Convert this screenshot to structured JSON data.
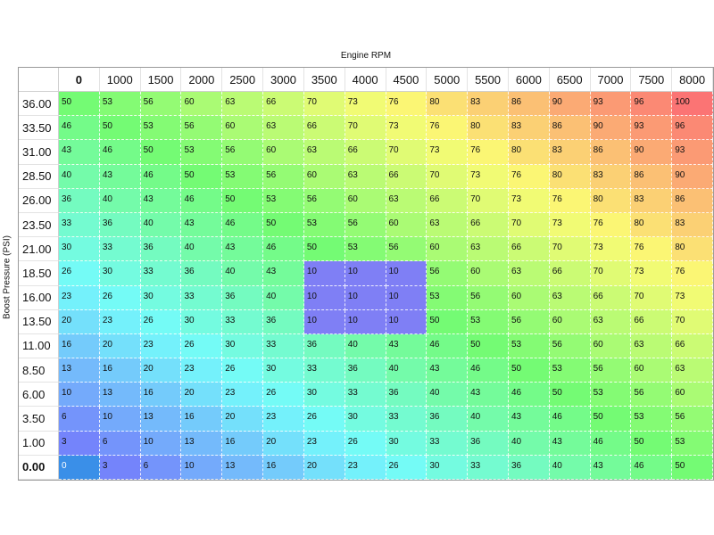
{
  "x_axis_label": "Engine RPM",
  "y_axis_label": "Boost Pressure (PSI)",
  "rpm": [
    "0",
    "1000",
    "1500",
    "2000",
    "2500",
    "3000",
    "3500",
    "4000",
    "4500",
    "5000",
    "5500",
    "6000",
    "6500",
    "7000",
    "7500",
    "8000"
  ],
  "boost": [
    "36.00",
    "33.50",
    "31.00",
    "28.50",
    "26.00",
    "23.50",
    "21.00",
    "18.50",
    "16.00",
    "13.50",
    "11.00",
    "8.50",
    "6.00",
    "3.50",
    "1.00",
    "0.00"
  ],
  "selected_cell": {
    "row": 15,
    "col": 0
  },
  "highlight_color": "#7f7ff5",
  "selected_color": "#3a8fe8",
  "values": [
    [
      50,
      53,
      56,
      60,
      63,
      66,
      70,
      73,
      76,
      80,
      83,
      86,
      90,
      93,
      96,
      100
    ],
    [
      46,
      50,
      53,
      56,
      60,
      63,
      66,
      70,
      73,
      76,
      80,
      83,
      86,
      90,
      93,
      96
    ],
    [
      43,
      46,
      50,
      53,
      56,
      60,
      63,
      66,
      70,
      73,
      76,
      80,
      83,
      86,
      90,
      93
    ],
    [
      40,
      43,
      46,
      50,
      53,
      56,
      60,
      63,
      66,
      70,
      73,
      76,
      80,
      83,
      86,
      90
    ],
    [
      36,
      40,
      43,
      46,
      50,
      53,
      56,
      60,
      63,
      66,
      70,
      73,
      76,
      80,
      83,
      86
    ],
    [
      33,
      36,
      40,
      43,
      46,
      50,
      53,
      56,
      60,
      63,
      66,
      70,
      73,
      76,
      80,
      83
    ],
    [
      30,
      33,
      36,
      40,
      43,
      46,
      50,
      53,
      56,
      60,
      63,
      66,
      70,
      73,
      76,
      80
    ],
    [
      26,
      30,
      33,
      36,
      40,
      43,
      10,
      10,
      10,
      56,
      60,
      63,
      66,
      70,
      73,
      76
    ],
    [
      23,
      26,
      30,
      33,
      36,
      40,
      10,
      10,
      10,
      53,
      56,
      60,
      63,
      66,
      70,
      73
    ],
    [
      20,
      23,
      26,
      30,
      33,
      36,
      10,
      10,
      10,
      50,
      53,
      56,
      60,
      63,
      66,
      70
    ],
    [
      16,
      20,
      23,
      26,
      30,
      33,
      36,
      40,
      43,
      46,
      50,
      53,
      56,
      60,
      63,
      66
    ],
    [
      13,
      16,
      20,
      23,
      26,
      30,
      33,
      36,
      40,
      43,
      46,
      50,
      53,
      56,
      60,
      63
    ],
    [
      10,
      13,
      16,
      20,
      23,
      26,
      30,
      33,
      36,
      40,
      43,
      46,
      50,
      53,
      56,
      60
    ],
    [
      6,
      10,
      13,
      16,
      20,
      23,
      26,
      30,
      33,
      36,
      40,
      43,
      46,
      50,
      53,
      56
    ],
    [
      3,
      6,
      10,
      13,
      16,
      20,
      23,
      26,
      30,
      33,
      36,
      40,
      43,
      46,
      50,
      53
    ],
    [
      0,
      3,
      6,
      10,
      13,
      16,
      20,
      23,
      26,
      30,
      33,
      36,
      40,
      43,
      46,
      50
    ]
  ],
  "highlight_cells": [
    [
      7,
      6
    ],
    [
      7,
      7
    ],
    [
      7,
      8
    ],
    [
      8,
      6
    ],
    [
      8,
      7
    ],
    [
      8,
      8
    ],
    [
      9,
      6
    ],
    [
      9,
      7
    ],
    [
      9,
      8
    ]
  ]
}
